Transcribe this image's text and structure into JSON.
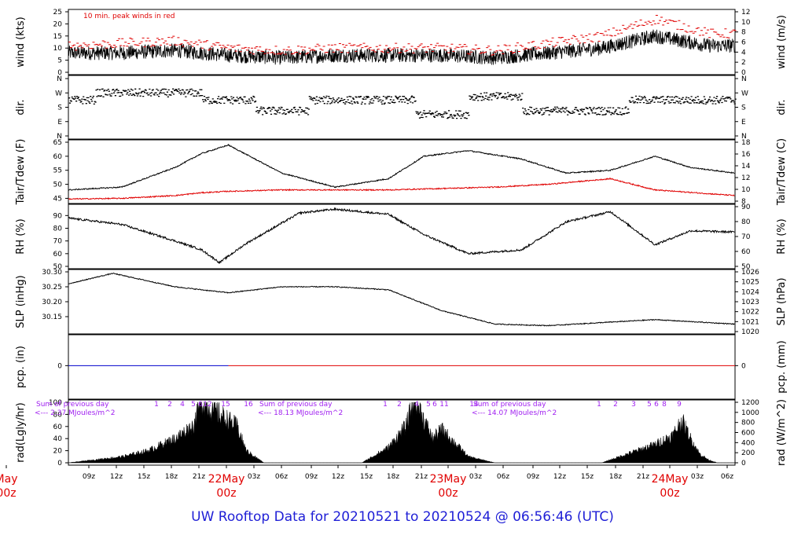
{
  "footer_title": "UW Rooftop Data for 20210521  to  20210524 @ 06:56:46  (UTC)",
  "colors": {
    "axis": "#000000",
    "peak": "#e00000",
    "dew": "#e00000",
    "pcp_recent": "#0000cc",
    "rad_text": "#a020f0",
    "date_label": "#e00000",
    "title": "#1f1fd6"
  },
  "chart_data": [
    {
      "panel": "wind",
      "type": "line",
      "ylabel_left": "wind (kts)",
      "ylabel_right": "wind (m/s)",
      "ylim": [
        0,
        25
      ],
      "yticks_left": [
        "0",
        "5",
        "10",
        "15",
        "20",
        "25"
      ],
      "yticks_right": [
        "0",
        "2",
        "4",
        "6",
        "8",
        "10",
        "12"
      ],
      "annotation": "10 min. peak winds in red",
      "series": [
        {
          "hours": [
            0,
            6,
            12,
            18,
            24,
            30,
            36,
            42,
            48,
            54,
            60,
            66,
            72,
            78
          ],
          "values": [
            7,
            8,
            8,
            9,
            7,
            6,
            7,
            7,
            7,
            6,
            8,
            10,
            15,
            11
          ]
        },
        {
          "hours": [
            0,
            6,
            12,
            18,
            24,
            30,
            36,
            42,
            48,
            54,
            60,
            66,
            72,
            78
          ],
          "values": [
            10,
            11,
            12,
            13,
            10,
            9,
            10,
            10,
            10,
            9,
            12,
            15,
            22,
            16
          ]
        }
      ]
    },
    {
      "panel": "dir",
      "type": "scatter",
      "ylabel_left": "dir.",
      "ylabel_right": "dir.",
      "yticks_left": [
        "N",
        "E",
        "S",
        "W",
        "N"
      ],
      "yticks_right": [
        "N",
        "E",
        "S",
        "W",
        "N"
      ],
      "hours": [
        0,
        6,
        12,
        18,
        24,
        30,
        36,
        42,
        48,
        54,
        60,
        66,
        72,
        78
      ],
      "values": [
        "S",
        "SW",
        "W",
        "W",
        "SW",
        "SSE",
        "SW",
        "SW",
        "SE",
        "WSW",
        "SSE",
        "SSE",
        "SW",
        "SW"
      ]
    },
    {
      "panel": "temp",
      "type": "line",
      "ylabel_left": "Tair/Tdew (F)",
      "ylabel_right": "Tair/Tdew (C)",
      "ylim": [
        44,
        65
      ],
      "yticks_left": [
        "45",
        "50",
        "55",
        "60",
        "65"
      ],
      "yticks_right": [
        "8",
        "10",
        "12",
        "14",
        "16",
        "18"
      ],
      "series": [
        {
          "hours": [
            0,
            6,
            12,
            18,
            21,
            24,
            30,
            36,
            42,
            46,
            51,
            57,
            62,
            67,
            72,
            76,
            81
          ],
          "values": [
            54,
            48,
            49,
            56,
            61,
            64,
            54,
            49,
            52,
            60,
            62,
            59,
            54,
            55,
            60,
            56,
            54
          ]
        },
        {
          "hours": [
            0,
            12,
            18,
            21,
            24,
            30,
            42,
            48,
            54,
            60,
            67,
            72,
            81
          ],
          "values": [
            44.5,
            45,
            46,
            47,
            47.5,
            48,
            48,
            48.5,
            49,
            50,
            52,
            48,
            46
          ]
        }
      ]
    },
    {
      "panel": "rh",
      "type": "line",
      "ylabel_left": "RH (%)",
      "ylabel_right": "RH (%)",
      "ylim": [
        50,
        97
      ],
      "yticks_left": [
        "50",
        "60",
        "70",
        "80",
        "90"
      ],
      "yticks_right": [
        "50",
        "60",
        "70",
        "80",
        "90"
      ],
      "series": [
        {
          "hours": [
            0,
            6,
            12,
            18,
            21,
            23,
            26,
            32,
            36,
            42,
            46,
            51,
            57,
            62,
            67,
            72,
            76,
            81
          ],
          "values": [
            70,
            88,
            83,
            70,
            63,
            53,
            68,
            92,
            95,
            91,
            75,
            60,
            63,
            85,
            93,
            67,
            78,
            77
          ]
        }
      ]
    },
    {
      "panel": "slp",
      "type": "line",
      "ylabel_left": "SLP (inHg)",
      "ylabel_right": "SLP (hPa)",
      "ylim": [
        30.1,
        30.3
      ],
      "yticks_left": [
        "30.15",
        "30.20",
        "30.25",
        "30.30"
      ],
      "yticks_right": [
        "1020",
        "1021",
        "1022",
        "1023",
        "1024",
        "1025",
        "1026"
      ],
      "series": [
        {
          "hours": [
            0,
            6,
            11,
            18,
            24,
            30,
            36,
            42,
            48,
            54,
            60,
            66,
            72,
            78,
            81
          ],
          "values": [
            30.21,
            30.26,
            30.295,
            30.25,
            30.23,
            30.25,
            30.25,
            30.24,
            30.17,
            30.125,
            30.12,
            30.13,
            30.14,
            30.13,
            30.125
          ]
        }
      ]
    },
    {
      "panel": "pcp",
      "type": "line",
      "ylabel_left": "pcp. (in)",
      "ylabel_right": "pcp. (mm)",
      "yticks_left": [
        "0"
      ],
      "yticks_right": [
        "0"
      ],
      "series": [
        {
          "hours": [
            0,
            81
          ],
          "values": [
            0,
            0
          ]
        }
      ]
    },
    {
      "panel": "rad",
      "type": "area",
      "ylabel_left": "rad(Lgly/hr)",
      "ylabel_right": "rad (W/m^2)",
      "ylim": [
        0,
        100
      ],
      "yticks_left": [
        "0",
        "20",
        "40",
        "60",
        "80",
        "100"
      ],
      "yticks_right": [
        "0",
        "200",
        "400",
        "600",
        "800",
        "1000",
        "1200"
      ],
      "annotations": [
        {
          "text": "Sum of previous day",
          "hour": 3
        },
        {
          "text": "<--- 2.37 MJoules/m^2",
          "hour": 3
        },
        {
          "text": "Sum of previous day",
          "hour": 30
        },
        {
          "text": "<--- 18.13 MJoules/m^2",
          "hour": 30
        },
        {
          "text": "Sum of previous day",
          "hour": 57
        },
        {
          "text": "<--- 14.07 MJoules/m^2",
          "hour": 57
        }
      ],
      "hour_labels": [
        "1",
        "2",
        "4",
        "5",
        "6",
        "12",
        "15",
        "16",
        "1",
        "2",
        "4",
        "5",
        "6",
        "11",
        "14",
        "1",
        "2",
        "3",
        "5",
        "6",
        "8",
        "9"
      ],
      "series": [
        {
          "hours": [
            6,
            12,
            15,
            18,
            20,
            21,
            23,
            25,
            26,
            28,
            30,
            33,
            36,
            39,
            42,
            44,
            45,
            46,
            47,
            48,
            49,
            51,
            54,
            57,
            60,
            63,
            66,
            68,
            70,
            72,
            74,
            75,
            76,
            77,
            78,
            79
          ],
          "values": [
            0,
            10,
            20,
            40,
            60,
            100,
            80,
            60,
            20,
            0,
            0,
            0,
            0,
            0,
            25,
            60,
            110,
            70,
            40,
            55,
            40,
            10,
            0,
            0,
            0,
            0,
            0,
            10,
            20,
            30,
            45,
            70,
            40,
            15,
            5,
            0
          ]
        }
      ]
    }
  ],
  "x_axis": {
    "hour_ticks": [
      "09z",
      "12z",
      "15z",
      "18z",
      "21z",
      "03z",
      "06z",
      "09z",
      "12z",
      "15z",
      "18z",
      "21z",
      "03z",
      "06z",
      "09z",
      "12z",
      "15z",
      "18z",
      "21z",
      "03z",
      "06z"
    ],
    "date_labels": [
      {
        "date": "May",
        "sub": "00z"
      },
      {
        "date": "22May",
        "sub": "00z"
      },
      {
        "date": "23May",
        "sub": "00z"
      },
      {
        "date": "24May",
        "sub": "00z"
      }
    ]
  }
}
